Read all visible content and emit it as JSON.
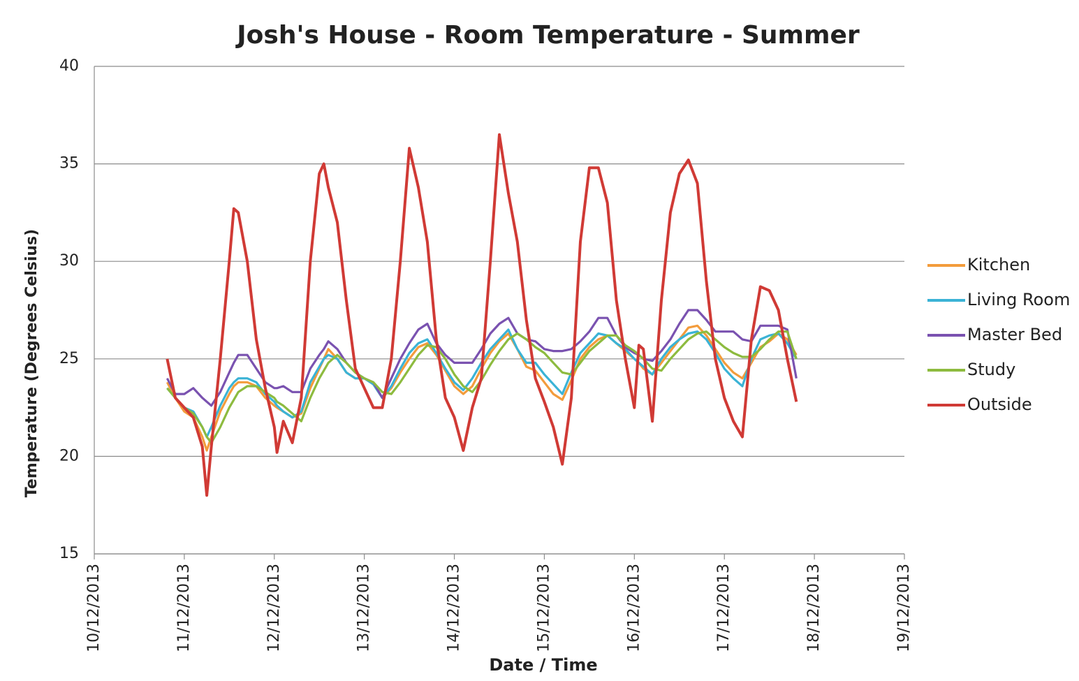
{
  "chart_data": {
    "type": "line",
    "title": "Josh's House - Room Temperature - Summer",
    "x_label": "Date / Time",
    "y_label": "Temperature (Degrees Celsius)",
    "xlim": [
      0,
      9
    ],
    "xticks": [
      {
        "value": 0,
        "label": "10/12/2013"
      },
      {
        "value": 1,
        "label": "11/12/2013"
      },
      {
        "value": 2,
        "label": "12/12/2013"
      },
      {
        "value": 3,
        "label": "13/12/2013"
      },
      {
        "value": 4,
        "label": "14/12/2013"
      },
      {
        "value": 5,
        "label": "15/12/2013"
      },
      {
        "value": 6,
        "label": "16/12/2013"
      },
      {
        "value": 7,
        "label": "17/12/2013"
      },
      {
        "value": 8,
        "label": "18/12/2013"
      },
      {
        "value": 9,
        "label": "19/12/2013"
      }
    ],
    "ylim": [
      15,
      40
    ],
    "yticks": [
      15,
      20,
      25,
      30,
      35,
      40
    ],
    "grid": true,
    "legend": "right",
    "x": [
      0.81,
      0.9,
      1.0,
      1.1,
      1.2,
      1.25,
      1.3,
      1.4,
      1.5,
      1.55,
      1.6,
      1.7,
      1.8,
      1.9,
      2.0,
      2.03,
      2.1,
      2.2,
      2.3,
      2.4,
      2.5,
      2.55,
      2.6,
      2.7,
      2.8,
      2.9,
      3.0,
      3.1,
      3.2,
      3.3,
      3.4,
      3.5,
      3.6,
      3.7,
      3.8,
      3.9,
      4.0,
      4.1,
      4.2,
      4.3,
      4.4,
      4.5,
      4.6,
      4.7,
      4.8,
      4.9,
      5.0,
      5.1,
      5.2,
      5.3,
      5.4,
      5.5,
      5.6,
      5.7,
      5.8,
      5.9,
      6.0,
      6.05,
      6.1,
      6.2,
      6.3,
      6.4,
      6.5,
      6.6,
      6.7,
      6.8,
      6.9,
      7.0,
      7.1,
      7.2,
      7.3,
      7.4,
      7.5,
      7.6,
      7.7,
      7.8
    ],
    "series": [
      {
        "name": "Kitchen",
        "color": "#f39c3c",
        "values": [
          23.8,
          23,
          22.3,
          22,
          21,
          20.3,
          21,
          22.3,
          23.2,
          23.6,
          23.8,
          23.8,
          23.6,
          23,
          22.6,
          22.5,
          22.3,
          22,
          22.2,
          23.5,
          24.5,
          25,
          25.5,
          25,
          24.3,
          24,
          24,
          23.7,
          23,
          23.5,
          24.3,
          25,
          25.6,
          25.8,
          25.2,
          24.4,
          23.6,
          23.2,
          23.6,
          24.5,
          25.3,
          25.9,
          26.3,
          25.5,
          24.6,
          24.4,
          23.8,
          23.2,
          22.9,
          23.9,
          25,
          25.6,
          26,
          26.2,
          25.8,
          25.4,
          25,
          24.8,
          24.5,
          24.2,
          24.8,
          25.4,
          26,
          26.6,
          26.7,
          26.2,
          25.5,
          24.8,
          24.3,
          24,
          24.8,
          25.6,
          25.9,
          26.3,
          26,
          25.2
        ]
      },
      {
        "name": "Living Room",
        "color": "#3bb3d6",
        "values": [
          23.5,
          23,
          22.5,
          22.3,
          21.5,
          21,
          21.5,
          22.6,
          23.5,
          23.8,
          24,
          24,
          23.8,
          23.2,
          22.8,
          22.6,
          22.3,
          22,
          22.3,
          23.8,
          24.6,
          25,
          25.2,
          25,
          24.3,
          24,
          24,
          23.7,
          23,
          23.6,
          24.5,
          25.3,
          25.8,
          26,
          25.3,
          24.5,
          23.8,
          23.4,
          24,
          24.8,
          25.5,
          26,
          26.5,
          25.5,
          24.8,
          24.8,
          24.2,
          23.7,
          23.2,
          24.3,
          25.3,
          25.8,
          26.3,
          26.2,
          25.8,
          25.5,
          25,
          24.8,
          24.6,
          24.2,
          25,
          25.6,
          26,
          26.3,
          26.4,
          26,
          25.3,
          24.5,
          24,
          23.6,
          25,
          26,
          26.2,
          26.3,
          25.8,
          25
        ]
      },
      {
        "name": "Master Bed",
        "color": "#7a52b0",
        "values": [
          24,
          23.2,
          23.2,
          23.5,
          23,
          22.8,
          22.6,
          23.3,
          24.3,
          24.8,
          25.2,
          25.2,
          24.5,
          23.8,
          23.5,
          23.5,
          23.6,
          23.3,
          23.3,
          24.5,
          25.2,
          25.5,
          25.9,
          25.5,
          24.8,
          24.3,
          24,
          23.8,
          23,
          24,
          25,
          25.8,
          26.5,
          26.8,
          25.8,
          25.2,
          24.8,
          24.8,
          24.8,
          25.5,
          26.3,
          26.8,
          27.1,
          26.3,
          26,
          25.9,
          25.5,
          25.4,
          25.4,
          25.5,
          25.9,
          26.4,
          27.1,
          27.1,
          26.2,
          25.6,
          25.3,
          25.2,
          25,
          24.9,
          25.4,
          26,
          26.8,
          27.5,
          27.5,
          27,
          26.4,
          26.4,
          26.4,
          26,
          25.9,
          26.7,
          26.7,
          26.7,
          26.5,
          24
        ]
      },
      {
        "name": "Study",
        "color": "#8dbb3f",
        "values": [
          23.5,
          23,
          22.5,
          22.2,
          21.5,
          21,
          20.7,
          21.5,
          22.5,
          22.9,
          23.3,
          23.6,
          23.6,
          23.3,
          23,
          22.8,
          22.6,
          22.2,
          21.8,
          23,
          24,
          24.4,
          24.8,
          25.2,
          24.8,
          24.3,
          24,
          23.8,
          23.3,
          23.2,
          23.8,
          24.5,
          25.2,
          25.7,
          25.6,
          25,
          24.2,
          23.6,
          23.3,
          23.9,
          24.7,
          25.4,
          26,
          26.3,
          26,
          25.6,
          25.3,
          24.8,
          24.3,
          24.2,
          24.8,
          25.4,
          25.8,
          26.2,
          26.2,
          25.7,
          25.4,
          25.2,
          25,
          24.5,
          24.4,
          25,
          25.5,
          26,
          26.3,
          26.4,
          26,
          25.6,
          25.3,
          25.1,
          25.1,
          25.5,
          26,
          26.4,
          26.4,
          25
        ]
      },
      {
        "name": "Outside",
        "color": "#d03a35",
        "values": [
          25,
          23,
          22.5,
          22,
          20.5,
          18,
          20.5,
          25,
          30,
          32.7,
          32.5,
          30,
          26,
          23.5,
          21.5,
          20.2,
          21.8,
          20.7,
          23,
          30,
          34.5,
          35,
          33.8,
          32,
          28,
          24.5,
          23.5,
          22.5,
          22.5,
          25,
          30,
          35.8,
          33.8,
          31,
          26,
          23,
          22,
          20.3,
          22.5,
          24,
          30,
          36.5,
          33.5,
          31,
          27,
          24,
          22.8,
          21.5,
          19.6,
          23,
          31,
          34.8,
          34.8,
          33,
          28,
          25,
          22.5,
          25.7,
          25.5,
          21.8,
          28,
          32.5,
          34.5,
          35.2,
          34,
          29,
          25,
          23,
          21.8,
          21,
          26,
          28.7,
          28.5,
          27.5,
          25,
          22.8
        ]
      }
    ]
  }
}
